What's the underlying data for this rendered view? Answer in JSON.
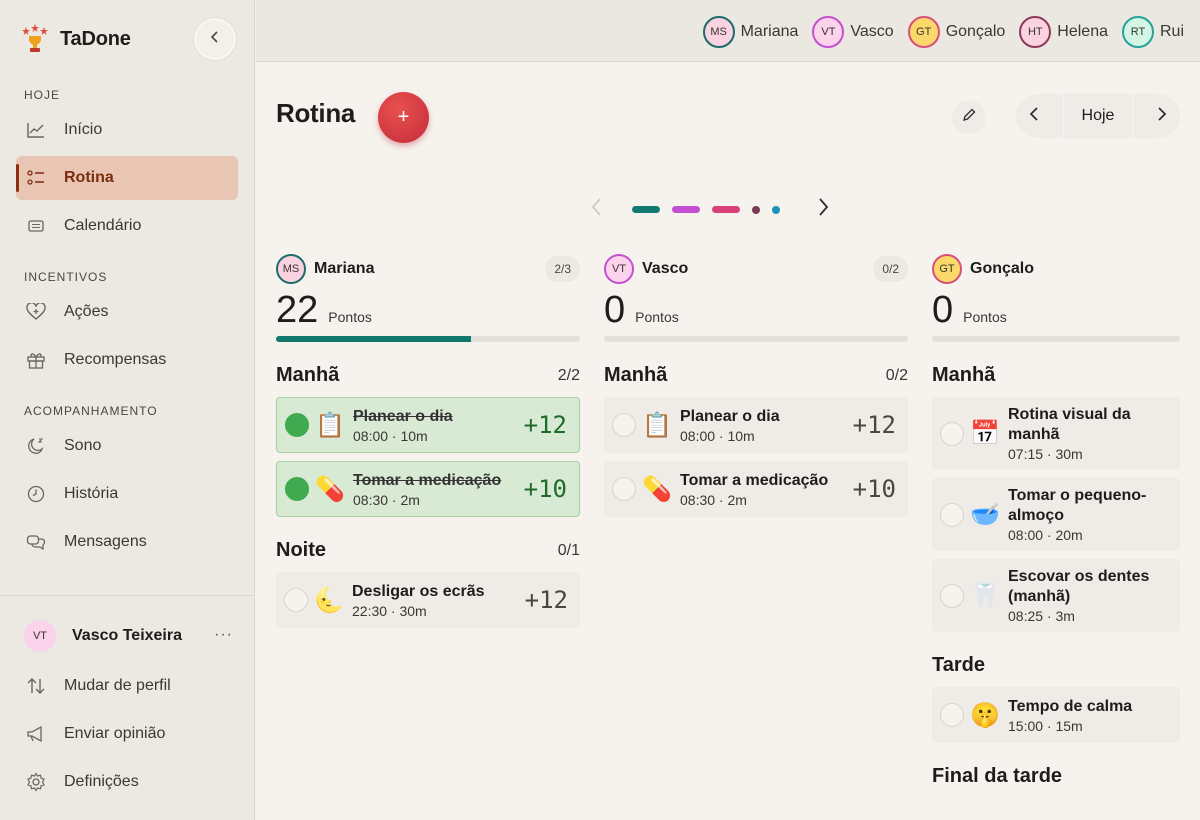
{
  "app": {
    "name": "TaDone"
  },
  "sidebar": {
    "sections": {
      "today": "HOJE",
      "incentives": "INCENTIVOS",
      "tracking": "ACOMPANHAMENTO"
    },
    "items": [
      {
        "label": "Início",
        "icon": "chart-line-icon"
      },
      {
        "label": "Rotina",
        "icon": "checklist-icon",
        "active": true
      },
      {
        "label": "Calendário",
        "icon": "calendar-icon"
      },
      {
        "label": "Ações",
        "icon": "heart-icon"
      },
      {
        "label": "Recompensas",
        "icon": "gift-icon"
      },
      {
        "label": "Sono",
        "icon": "moon-icon"
      },
      {
        "label": "História",
        "icon": "clock-icon"
      },
      {
        "label": "Mensagens",
        "icon": "chat-icon"
      }
    ],
    "profile": {
      "initials": "VT",
      "name": "Vasco Teixeira",
      "more": "···"
    },
    "footer": [
      {
        "label": "Mudar de perfil",
        "icon": "swap-icon"
      },
      {
        "label": "Enviar opinião",
        "icon": "megaphone-icon"
      },
      {
        "label": "Definições",
        "icon": "gear-icon"
      }
    ]
  },
  "topbar": {
    "users": [
      {
        "initials": "MS",
        "name": "Mariana",
        "bg": "#fbd3e0",
        "border": "#1b6b6b"
      },
      {
        "initials": "VT",
        "name": "Vasco",
        "bg": "#fbd3ea",
        "border": "#c44fd0"
      },
      {
        "initials": "GT",
        "name": "Gonçalo",
        "bg": "#fbd86a",
        "border": "#d94f7a"
      },
      {
        "initials": "HT",
        "name": "Helena",
        "bg": "#fbd3e0",
        "border": "#8a3a5a"
      },
      {
        "initials": "RT",
        "name": "Rui",
        "bg": "#d3f5e6",
        "border": "#23a39a"
      }
    ]
  },
  "main": {
    "title": "Rotina",
    "add": "+",
    "date_label": "Hoje"
  },
  "pager_dots": [
    "#127a70",
    "#c54fd2",
    "#d9417a",
    "#7a3a55",
    "#1a93b8"
  ],
  "columns": [
    {
      "initials": "MS",
      "name": "Mariana",
      "count": "2/3",
      "points": "22",
      "points_label": "Pontos",
      "progress": 0.64,
      "avatar_bg": "#fbd3e0",
      "avatar_border": "#1b6b6b",
      "sections": [
        {
          "name": "Manhã",
          "count": "2/2",
          "tasks": [
            {
              "emoji": "📋",
              "title": "Planear o dia",
              "meta": "08:00 · 10m",
              "pts": "+12",
              "done": true
            },
            {
              "emoji": "💊",
              "title": "Tomar a medicação",
              "meta": "08:30 · 2m",
              "pts": "+10",
              "done": true
            }
          ]
        },
        {
          "name": "Noite",
          "count": "0/1",
          "tasks": [
            {
              "emoji": "🌜",
              "title": "Desligar os ecrãs",
              "meta": "22:30 · 30m",
              "pts": "+12",
              "done": false
            }
          ]
        }
      ]
    },
    {
      "initials": "VT",
      "name": "Vasco",
      "count": "0/2",
      "points": "0",
      "points_label": "Pontos",
      "progress": 0,
      "avatar_bg": "#fbd3ea",
      "avatar_border": "#c44fd0",
      "sections": [
        {
          "name": "Manhã",
          "count": "0/2",
          "tasks": [
            {
              "emoji": "📋",
              "title": "Planear o dia",
              "meta": "08:00 · 10m",
              "pts": "+12",
              "done": false
            },
            {
              "emoji": "💊",
              "title": "Tomar a medicação",
              "meta": "08:30 · 2m",
              "pts": "+10",
              "done": false
            }
          ]
        }
      ]
    },
    {
      "initials": "GT",
      "name": "Gonçalo",
      "count": "",
      "points": "0",
      "points_label": "Pontos",
      "progress": 0,
      "avatar_bg": "#fbd86a",
      "avatar_border": "#d94f7a",
      "sections": [
        {
          "name": "Manhã",
          "count": "",
          "tasks": [
            {
              "emoji": "📅",
              "title": "Rotina visual da manhã",
              "meta": "07:15 · 30m",
              "pts": "",
              "done": false
            },
            {
              "emoji": "🥣",
              "title": "Tomar o pequeno-almoço",
              "meta": "08:00 · 20m",
              "pts": "",
              "done": false
            },
            {
              "emoji": "🦷",
              "title": "Escovar os dentes (manhã)",
              "meta": "08:25 · 3m",
              "pts": "",
              "done": false
            }
          ]
        },
        {
          "name": "Tarde",
          "count": "",
          "tasks": [
            {
              "emoji": "🤫",
              "title": "Tempo de calma",
              "meta": "15:00 · 15m",
              "pts": "",
              "done": false
            }
          ]
        },
        {
          "name": "Final da tarde",
          "count": "",
          "tasks": []
        }
      ]
    }
  ]
}
